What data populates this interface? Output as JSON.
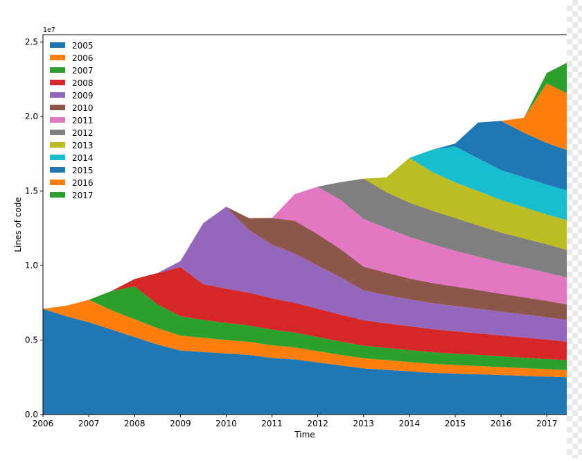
{
  "chart_data": {
    "type": "area",
    "stacked": true,
    "title": "",
    "xlabel": "Time",
    "ylabel": "Lines of code",
    "y_offset_text": "1e7",
    "xlim": [
      2006.0,
      2017.45
    ],
    "ylim": [
      0,
      2.55
    ],
    "y_scale_note": "values in units of 1e7",
    "x_ticks": [
      2006,
      2007,
      2008,
      2009,
      2010,
      2011,
      2012,
      2013,
      2014,
      2015,
      2016,
      2017
    ],
    "x_tick_labels": [
      "2006",
      "2007",
      "2008",
      "2009",
      "2010",
      "2011",
      "2012",
      "2013",
      "2014",
      "2015",
      "2016",
      "2017"
    ],
    "y_ticks": [
      0.0,
      0.5,
      1.0,
      1.5,
      2.0,
      2.5
    ],
    "y_tick_labels": [
      "0.0",
      "0.5",
      "1.0",
      "1.5",
      "2.0",
      "2.5"
    ],
    "legend_position": "top-left",
    "x": [
      2006.0,
      2006.5,
      2007.0,
      2007.5,
      2008.0,
      2008.5,
      2009.0,
      2009.5,
      2010.0,
      2010.5,
      2011.0,
      2011.5,
      2012.0,
      2012.5,
      2013.0,
      2013.5,
      2014.0,
      2014.5,
      2015.0,
      2015.5,
      2016.0,
      2016.5,
      2017.0,
      2017.45
    ],
    "series": [
      {
        "name": "2005",
        "color": "#1f77b4",
        "values": [
          0.71,
          0.66,
          0.62,
          0.57,
          0.52,
          0.47,
          0.43,
          0.42,
          0.41,
          0.4,
          0.38,
          0.37,
          0.35,
          0.33,
          0.31,
          0.3,
          0.29,
          0.28,
          0.275,
          0.27,
          0.265,
          0.26,
          0.255,
          0.25
        ]
      },
      {
        "name": "2006",
        "color": "#ff7f0e",
        "values": [
          0.0,
          0.07,
          0.15,
          0.13,
          0.12,
          0.11,
          0.1,
          0.095,
          0.09,
          0.088,
          0.085,
          0.08,
          0.075,
          0.07,
          0.068,
          0.065,
          0.063,
          0.06,
          0.058,
          0.056,
          0.054,
          0.052,
          0.05,
          0.048
        ]
      },
      {
        "name": "2007",
        "color": "#2ca02c",
        "values": [
          0.0,
          0.0,
          0.0,
          0.13,
          0.22,
          0.16,
          0.13,
          0.12,
          0.115,
          0.11,
          0.105,
          0.1,
          0.095,
          0.09,
          0.085,
          0.082,
          0.08,
          0.078,
          0.076,
          0.074,
          0.072,
          0.07,
          0.068,
          0.066
        ]
      },
      {
        "name": "2008",
        "color": "#d62728",
        "values": [
          0.0,
          0.0,
          0.0,
          0.0,
          0.05,
          0.21,
          0.33,
          0.24,
          0.23,
          0.22,
          0.21,
          0.2,
          0.19,
          0.18,
          0.17,
          0.165,
          0.16,
          0.155,
          0.15,
          0.145,
          0.14,
          0.135,
          0.13,
          0.125
        ]
      },
      {
        "name": "2009",
        "color": "#9467bd",
        "values": [
          0.0,
          0.0,
          0.0,
          0.0,
          0.0,
          0.0,
          0.04,
          0.41,
          0.55,
          0.42,
          0.36,
          0.33,
          0.29,
          0.25,
          0.2,
          0.19,
          0.18,
          0.175,
          0.17,
          0.165,
          0.16,
          0.155,
          0.15,
          0.145
        ]
      },
      {
        "name": "2010",
        "color": "#8c564b",
        "values": [
          0.0,
          0.0,
          0.0,
          0.0,
          0.0,
          0.0,
          0.0,
          0.0,
          0.0,
          0.08,
          0.18,
          0.22,
          0.21,
          0.19,
          0.16,
          0.15,
          0.14,
          0.135,
          0.13,
          0.125,
          0.12,
          0.115,
          0.11,
          0.105
        ]
      },
      {
        "name": "2011",
        "color": "#e377c2",
        "values": [
          0.0,
          0.0,
          0.0,
          0.0,
          0.0,
          0.0,
          0.0,
          0.0,
          0.0,
          0.0,
          0.0,
          0.18,
          0.32,
          0.33,
          0.32,
          0.3,
          0.28,
          0.26,
          0.24,
          0.225,
          0.21,
          0.2,
          0.19,
          0.18
        ]
      },
      {
        "name": "2012",
        "color": "#7f7f7f",
        "values": [
          0.0,
          0.0,
          0.0,
          0.0,
          0.0,
          0.0,
          0.0,
          0.0,
          0.0,
          0.0,
          0.0,
          0.0,
          0.0,
          0.12,
          0.27,
          0.24,
          0.23,
          0.225,
          0.22,
          0.21,
          0.2,
          0.195,
          0.19,
          0.185
        ]
      },
      {
        "name": "2013",
        "color": "#bcbd22",
        "values": [
          0.0,
          0.0,
          0.0,
          0.0,
          0.0,
          0.0,
          0.0,
          0.0,
          0.0,
          0.0,
          0.0,
          0.0,
          0.0,
          0.0,
          0.0,
          0.1,
          0.3,
          0.26,
          0.24,
          0.23,
          0.22,
          0.21,
          0.2,
          0.2
        ]
      },
      {
        "name": "2014",
        "color": "#17becf",
        "values": [
          0.0,
          0.0,
          0.0,
          0.0,
          0.0,
          0.0,
          0.0,
          0.0,
          0.0,
          0.0,
          0.0,
          0.0,
          0.0,
          0.0,
          0.0,
          0.0,
          0.0,
          0.15,
          0.24,
          0.22,
          0.2,
          0.2,
          0.2,
          0.2
        ]
      },
      {
        "name": "2015",
        "color": "#1f77b4",
        "values": [
          0.0,
          0.0,
          0.0,
          0.0,
          0.0,
          0.0,
          0.0,
          0.0,
          0.0,
          0.0,
          0.0,
          0.0,
          0.0,
          0.0,
          0.0,
          0.0,
          0.0,
          0.0,
          0.02,
          0.24,
          0.33,
          0.3,
          0.28,
          0.27
        ]
      },
      {
        "name": "2016",
        "color": "#ff7f0e",
        "values": [
          0.0,
          0.0,
          0.0,
          0.0,
          0.0,
          0.0,
          0.0,
          0.0,
          0.0,
          0.0,
          0.0,
          0.0,
          0.0,
          0.0,
          0.0,
          0.0,
          0.0,
          0.0,
          0.0,
          0.0,
          0.0,
          0.1,
          0.4,
          0.38
        ]
      },
      {
        "name": "2017",
        "color": "#2ca02c",
        "values": [
          0.0,
          0.0,
          0.0,
          0.0,
          0.0,
          0.0,
          0.0,
          0.0,
          0.0,
          0.0,
          0.0,
          0.0,
          0.0,
          0.0,
          0.0,
          0.0,
          0.0,
          0.0,
          0.0,
          0.0,
          0.0,
          0.0,
          0.07,
          0.21
        ]
      }
    ]
  }
}
